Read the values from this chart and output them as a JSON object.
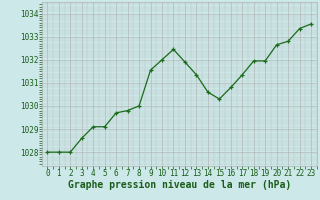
{
  "x": [
    0,
    1,
    2,
    3,
    4,
    5,
    6,
    7,
    8,
    9,
    10,
    11,
    12,
    13,
    14,
    15,
    16,
    17,
    18,
    19,
    20,
    21,
    22,
    23
  ],
  "y": [
    1028.0,
    1028.0,
    1028.0,
    1028.6,
    1029.1,
    1029.1,
    1029.7,
    1029.8,
    1030.0,
    1031.55,
    1032.0,
    1032.45,
    1031.9,
    1031.35,
    1030.6,
    1030.3,
    1030.8,
    1031.35,
    1031.95,
    1031.95,
    1032.65,
    1032.8,
    1033.35,
    1033.55
  ],
  "line_color": "#1a6b1a",
  "marker": "+",
  "marker_size": 3,
  "marker_color": "#1a6b1a",
  "background_color": "#cce8e8",
  "grid_color": "#b0b0b0",
  "xlabel": "Graphe pression niveau de la mer (hPa)",
  "xlabel_color": "#1a5c1a",
  "xlabel_fontsize": 7,
  "ytick_labels": [
    "1028",
    "1029",
    "1030",
    "1031",
    "1032",
    "1033",
    "1034"
  ],
  "ytick_values": [
    1028,
    1029,
    1030,
    1031,
    1032,
    1033,
    1034
  ],
  "ylim": [
    1027.4,
    1034.5
  ],
  "xlim": [
    -0.5,
    23.5
  ],
  "xtick_values": [
    0,
    1,
    2,
    3,
    4,
    5,
    6,
    7,
    8,
    9,
    10,
    11,
    12,
    13,
    14,
    15,
    16,
    17,
    18,
    19,
    20,
    21,
    22,
    23
  ],
  "tick_color": "#1a5c1a",
  "tick_fontsize": 5.5,
  "line_width": 0.9,
  "marker_edge_width": 0.9
}
